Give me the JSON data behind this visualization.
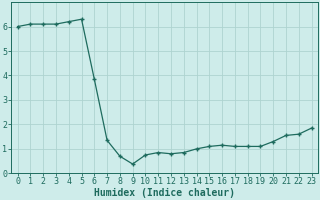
{
  "x": [
    0,
    1,
    2,
    3,
    4,
    5,
    6,
    7,
    8,
    9,
    10,
    11,
    12,
    13,
    14,
    15,
    16,
    17,
    18,
    19,
    20,
    21,
    22,
    23
  ],
  "y": [
    6.0,
    6.1,
    6.1,
    6.1,
    6.2,
    6.3,
    3.85,
    1.35,
    0.7,
    0.38,
    0.75,
    0.85,
    0.8,
    0.85,
    1.0,
    1.1,
    1.15,
    1.1,
    1.1,
    1.1,
    1.3,
    1.55,
    1.6,
    1.85
  ],
  "xlabel": "Humidex (Indice chaleur)",
  "bg_color": "#ceecea",
  "grid_color": "#aed4d0",
  "line_color": "#1e6b5e",
  "marker_color": "#1e6b5e",
  "ylim": [
    0,
    7
  ],
  "xlim": [
    -0.5,
    23.5
  ],
  "yticks": [
    0,
    1,
    2,
    3,
    4,
    5,
    6
  ],
  "xtick_labels": [
    "0",
    "1",
    "2",
    "3",
    "4",
    "5",
    "6",
    "7",
    "8",
    "9",
    "10",
    "11",
    "12",
    "13",
    "14",
    "15",
    "16",
    "17",
    "18",
    "19",
    "20",
    "21",
    "22",
    "23"
  ],
  "xlabel_fontsize": 7,
  "tick_fontsize": 6,
  "label_color": "#1e6b5e"
}
